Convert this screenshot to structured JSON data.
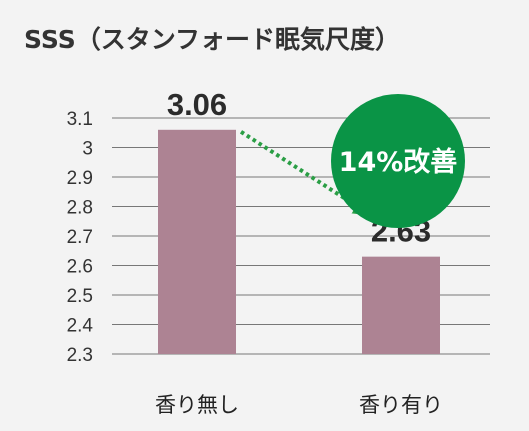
{
  "chart_data": {
    "type": "bar",
    "title": "SSS（スタンフォード眠気尺度）",
    "categories": [
      "香り無し",
      "香り有り"
    ],
    "values": [
      3.06,
      2.63
    ],
    "value_labels": [
      "3.06",
      "2.63"
    ],
    "ylim": [
      2.3,
      3.1
    ],
    "yticks": [
      "2.3",
      "2.4",
      "2.5",
      "2.6",
      "2.7",
      "2.8",
      "2.9",
      "3",
      "3.1"
    ],
    "grid": true,
    "annotation": "14%改善",
    "colors": {
      "bar": "#ad8393",
      "arrow": "#2a9e45",
      "badge": "#0a9446",
      "grid": "#777777"
    }
  }
}
